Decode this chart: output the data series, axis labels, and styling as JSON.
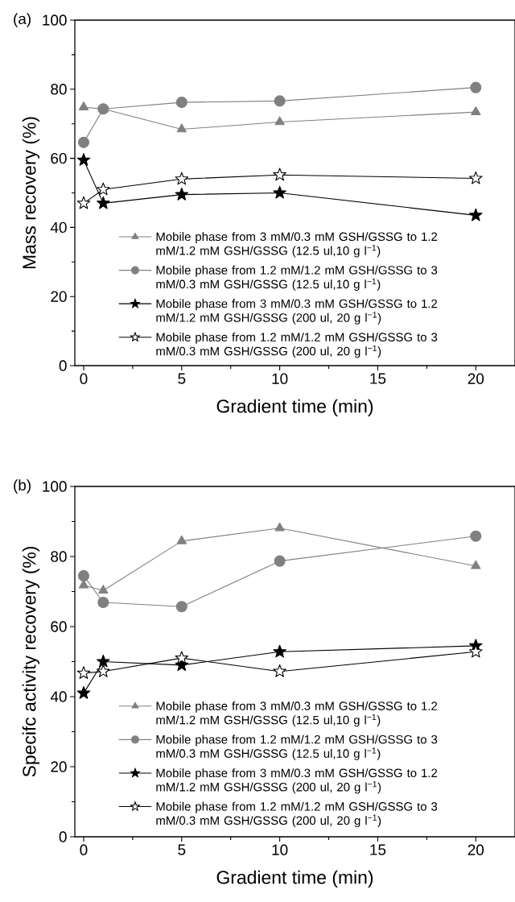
{
  "chart_data": [
    {
      "type": "line",
      "xlabel": "Gradient time (min)",
      "ylabel": "Mass recovery (%)",
      "annotations": [
        "(a)"
      ],
      "x": [
        0,
        1,
        5,
        10,
        20
      ],
      "xlim": [
        -0.45,
        22
      ],
      "ylim": [
        0,
        100
      ],
      "xticks": [
        0,
        5,
        10,
        15,
        20
      ],
      "yticks": [
        0,
        20,
        40,
        60,
        80,
        100
      ],
      "legend": "bottom",
      "series": [
        {
          "name": "Mobile phase from 3 mM/0.3 mM GSH/GSSG to 1.2 mM/1.2 mM GSH/GSSG (12.5 ul,10 g l$^{−1}$)",
          "color": "#808080",
          "marker": "triangle",
          "values": [
            74.8,
            74.3,
            68.4,
            70.5,
            73.4
          ]
        },
        {
          "name": "Mobile phase from 1.2 mM/1.2 mM GSH/GSSG to 3 mM/0.3 mM GSH/GSSG (12.5 ul,10 g l$^{−1}$)",
          "color": "#808080",
          "marker": "circle",
          "values": [
            64.6,
            74.3,
            76.2,
            76.6,
            80.5
          ]
        },
        {
          "name": "Mobile phase from 3 mM/0.3 mM GSH/GSSG to 1.2 mM/1.2 mM GSH/GSSG (200 ul, 20 g l$^{−1}$)",
          "color": "#000000",
          "marker": "star",
          "values": [
            59.5,
            47,
            49.5,
            50,
            43.5
          ]
        },
        {
          "name": "Mobile phase from 1.2 mM/1.2 mM GSH/GSSG to 3 mM/0.3 mM GSH/GSSG (200 ul, 20 g l$^{−1}$)",
          "color": "#000000",
          "marker": "star-open",
          "values": [
            47,
            51,
            54,
            55.2,
            54.2
          ]
        }
      ]
    },
    {
      "type": "line",
      "xlabel": "Gradient time (min)",
      "ylabel": "Specifc activity recovery (%)",
      "annotations": [
        "(b)"
      ],
      "x": [
        0,
        1,
        5,
        10,
        20
      ],
      "xlim": [
        -0.45,
        22
      ],
      "ylim": [
        0,
        100
      ],
      "xticks": [
        0,
        5,
        10,
        15,
        20
      ],
      "yticks": [
        0,
        20,
        40,
        60,
        80,
        100
      ],
      "legend": "bottom",
      "series": [
        {
          "name": "Mobile phase from 3 mM/0.3 mM GSH/GSSG to 1.2 mM/1.2 mM GSH/GSSG (12.5 ul,10 g l$^{−1}$)",
          "color": "#808080",
          "marker": "triangle",
          "values": [
            71.8,
            70.3,
            84.4,
            88.1,
            77.3
          ]
        },
        {
          "name": "Mobile phase from 1.2 mM/1.2 mM GSH/GSSG to 3 mM/0.3 mM GSH/GSSG (12.5 ul,10 g l$^{−1}$)",
          "color": "#808080",
          "marker": "circle",
          "values": [
            74.5,
            66.9,
            65.7,
            78.7,
            85.8
          ]
        },
        {
          "name": "Mobile phase from 3 mM/0.3 mM GSH/GSSG to 1.2 mM/1.2 mM GSH/GSSG (200 ul, 20 g l$^{−1}$)",
          "color": "#000000",
          "marker": "star",
          "values": [
            41,
            50,
            49,
            52.8,
            54.5
          ]
        },
        {
          "name": "Mobile phase from 1.2 mM/1.2 mM GSH/GSSG to 3 mM/0.3 mM GSH/GSSG (200 ul, 20 g l$^{−1}$)",
          "color": "#000000",
          "marker": "star-open",
          "values": [
            46.7,
            47.2,
            51,
            47.2,
            52.8
          ]
        }
      ]
    }
  ]
}
